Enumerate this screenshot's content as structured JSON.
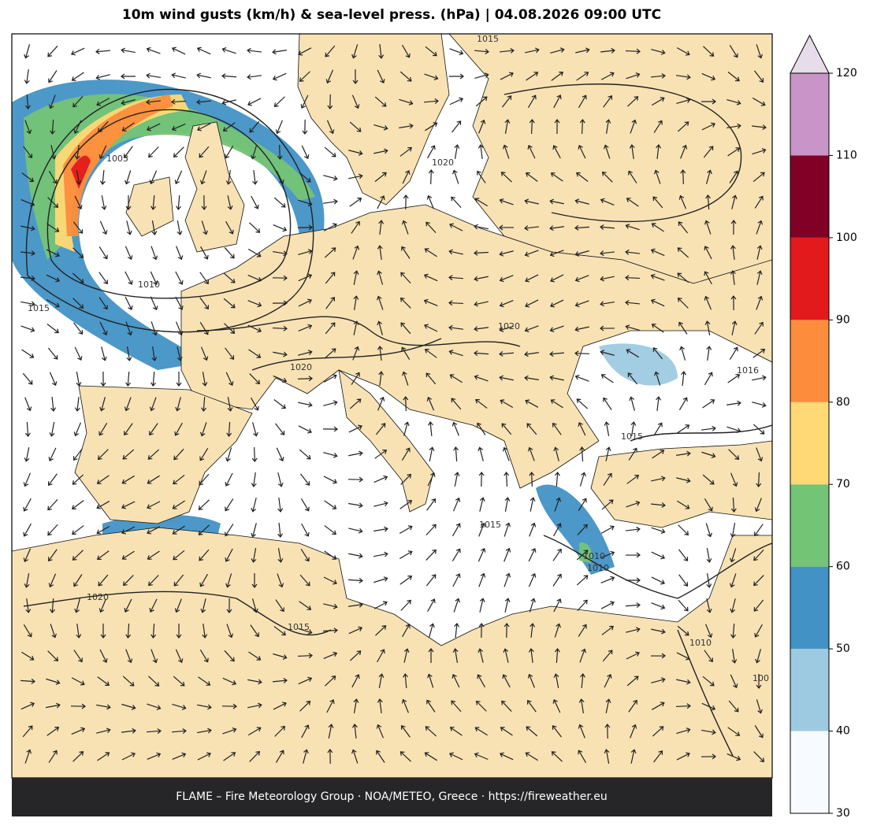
{
  "title": "10m wind gusts (km/h) & sea-level press. (hPa)  |  04.08.2026 09:00 UTC",
  "footer": "FLAME – Fire Meteorology Group · NOA/METEO, Greece · https://fireweather.eu",
  "colorbar": {
    "ticks": [
      30,
      40,
      50,
      60,
      70,
      80,
      90,
      100,
      110,
      120
    ],
    "colors": [
      "#f7fbff",
      "#9ecae1",
      "#4292c6",
      "#74c476",
      "#fed976",
      "#fd8d3c",
      "#e31a1c",
      "#800026",
      "#c994c7"
    ],
    "extend_color": "#e7dcea"
  },
  "contour_labels": [
    "1015",
    "1005",
    "1010",
    "1015",
    "1020",
    "1020",
    "1020",
    "1016",
    "1015",
    "1015",
    "1010",
    "1020",
    "1015",
    "1010",
    "1010",
    "100"
  ]
}
